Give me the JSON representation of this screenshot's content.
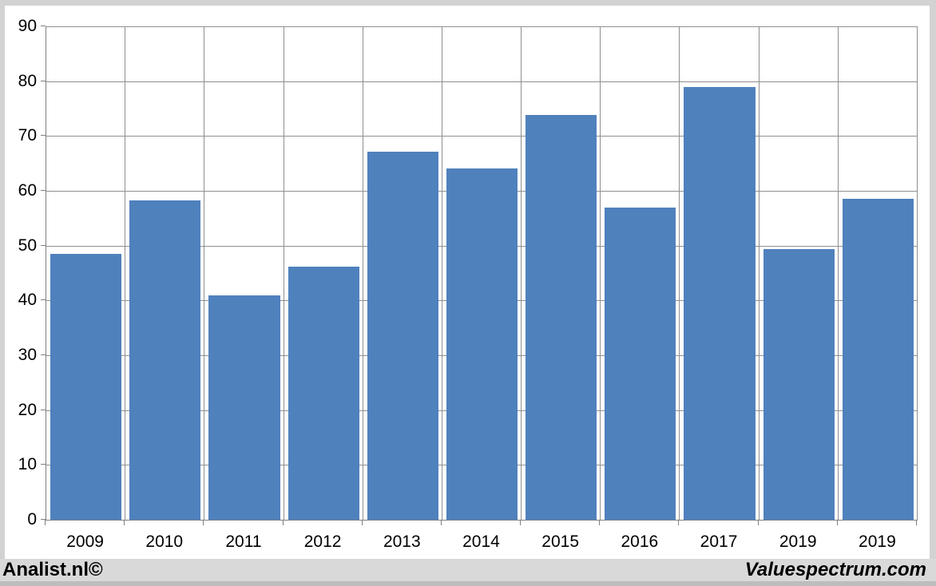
{
  "chart_data": {
    "type": "bar",
    "title": "",
    "categories": [
      "2009",
      "2010",
      "2011",
      "2012",
      "2013",
      "2014",
      "2015",
      "2016",
      "2017",
      "2019",
      "2019"
    ],
    "values": [
      48.5,
      58.3,
      40.9,
      46.2,
      67.2,
      64.1,
      73.8,
      57.0,
      78.9,
      49.3,
      58.6
    ],
    "xlabel": "",
    "ylabel": "",
    "ylim": [
      0,
      90
    ],
    "ytick_step": 10,
    "yticks": [
      0,
      10,
      20,
      30,
      40,
      50,
      60,
      70,
      80,
      90
    ],
    "grid": "both",
    "legend": "none",
    "bar_color": "#4f81bd",
    "gridline_color": "#8f8f8f",
    "axis_color": "#7f7f7f",
    "tick_label_color": "#000000"
  },
  "frame": {
    "color": "#d2d2d2",
    "surface_color": "#ffffff"
  },
  "footer": {
    "left_text": "Analist.nl©",
    "right_text": "Valuespectrum.com",
    "background": "#d9d9d9",
    "text_color": "#000000"
  }
}
